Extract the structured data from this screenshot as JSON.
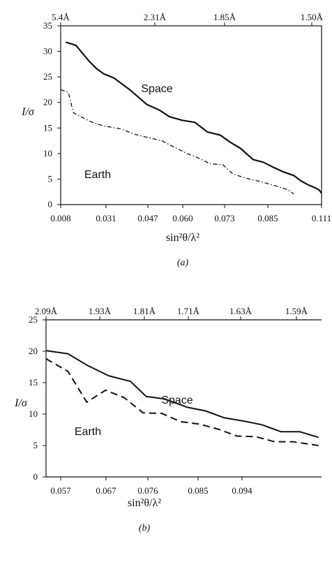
{
  "chart_data": [
    {
      "type": "line",
      "panel_label": "(a)",
      "xlabel": "sin²θ/λ²",
      "ylabel": "I/σ",
      "xlim": [
        0.008,
        0.111
      ],
      "ylim": [
        0,
        35
      ],
      "x_ticks": [
        "0.008",
        "0.031",
        "0.047",
        "0.060",
        "0.073",
        "0.085",
        "0.111"
      ],
      "y_ticks": [
        "0",
        "5",
        "10",
        "15",
        "20",
        "25",
        "30",
        "35"
      ],
      "top_ticks": [
        "5.4Å",
        "2.31Å",
        "1.85Å",
        "1.50Å"
      ],
      "grid": false,
      "series": [
        {
          "name": "Space",
          "style": "solid",
          "points": [
            [
              0.01,
              31.8
            ],
            [
              0.014,
              31.2
            ],
            [
              0.019,
              28.2
            ],
            [
              0.022,
              26.7
            ],
            [
              0.025,
              25.6
            ],
            [
              0.029,
              24.8
            ],
            [
              0.035,
              22.6
            ],
            [
              0.042,
              19.6
            ],
            [
              0.047,
              18.5
            ],
            [
              0.051,
              17.2
            ],
            [
              0.056,
              16.5
            ],
            [
              0.061,
              16.1
            ],
            [
              0.066,
              14.2
            ],
            [
              0.071,
              13.6
            ],
            [
              0.075,
              12.2
            ],
            [
              0.079,
              11.0
            ],
            [
              0.084,
              8.8
            ],
            [
              0.088,
              8.3
            ],
            [
              0.092,
              7.3
            ],
            [
              0.096,
              6.4
            ],
            [
              0.1,
              5.7
            ],
            [
              0.103,
              4.6
            ],
            [
              0.106,
              3.8
            ],
            [
              0.108,
              3.4
            ],
            [
              0.11,
              2.9
            ],
            [
              0.111,
              2.2
            ]
          ]
        },
        {
          "name": "Earth",
          "style": "dash-dot",
          "points": [
            [
              0.008,
              22.5
            ],
            [
              0.011,
              22.0
            ],
            [
              0.013,
              18.0
            ],
            [
              0.016,
              17.2
            ],
            [
              0.02,
              16.2
            ],
            [
              0.025,
              15.4
            ],
            [
              0.032,
              14.8
            ],
            [
              0.037,
              13.8
            ],
            [
              0.042,
              13.2
            ],
            [
              0.048,
              12.5
            ],
            [
              0.053,
              11.2
            ],
            [
              0.058,
              10.0
            ],
            [
              0.062,
              9.2
            ],
            [
              0.067,
              8.0
            ],
            [
              0.072,
              7.8
            ],
            [
              0.076,
              6.0
            ],
            [
              0.081,
              5.2
            ],
            [
              0.087,
              4.5
            ],
            [
              0.092,
              3.8
            ],
            [
              0.096,
              3.2
            ],
            [
              0.098,
              2.8
            ],
            [
              0.1,
              2.1
            ]
          ]
        }
      ]
    },
    {
      "type": "line",
      "panel_label": "(b)",
      "xlabel": "sin²θ/λ²",
      "ylabel": "I/σ",
      "xlim": [
        0.057,
        0.101
      ],
      "ylim": [
        0,
        25
      ],
      "x_ticks": [
        "0.057",
        "0.067",
        "0.076",
        "0.085",
        "0.094"
      ],
      "y_ticks": [
        "0",
        "5",
        "10",
        "15",
        "20",
        "25"
      ],
      "top_ticks": [
        "2.09Å",
        "1.93Å",
        "1.81Å",
        "1.71Å",
        "1.63Å",
        "1.59Å"
      ],
      "grid": false,
      "series": [
        {
          "name": "Space",
          "style": "solid",
          "points": [
            [
              0.057,
              20.1
            ],
            [
              0.0605,
              19.6
            ],
            [
              0.0635,
              17.8
            ],
            [
              0.067,
              16.1
            ],
            [
              0.0705,
              15.2
            ],
            [
              0.073,
              12.8
            ],
            [
              0.076,
              12.4
            ],
            [
              0.0795,
              11.1
            ],
            [
              0.0825,
              10.5
            ],
            [
              0.0855,
              9.4
            ],
            [
              0.0885,
              8.9
            ],
            [
              0.0915,
              8.3
            ],
            [
              0.0945,
              7.2
            ],
            [
              0.0975,
              7.2
            ],
            [
              0.1005,
              6.3
            ]
          ]
        },
        {
          "name": "Earth",
          "style": "dashed",
          "points": [
            [
              0.057,
              18.8
            ],
            [
              0.0605,
              16.8
            ],
            [
              0.0635,
              11.9
            ],
            [
              0.0665,
              13.8
            ],
            [
              0.0695,
              12.6
            ],
            [
              0.0725,
              10.2
            ],
            [
              0.0755,
              10.1
            ],
            [
              0.0785,
              8.8
            ],
            [
              0.0815,
              8.4
            ],
            [
              0.0845,
              7.6
            ],
            [
              0.0875,
              6.5
            ],
            [
              0.0905,
              6.4
            ],
            [
              0.0935,
              5.6
            ],
            [
              0.0965,
              5.6
            ],
            [
              0.1005,
              5.0
            ]
          ]
        }
      ]
    }
  ]
}
